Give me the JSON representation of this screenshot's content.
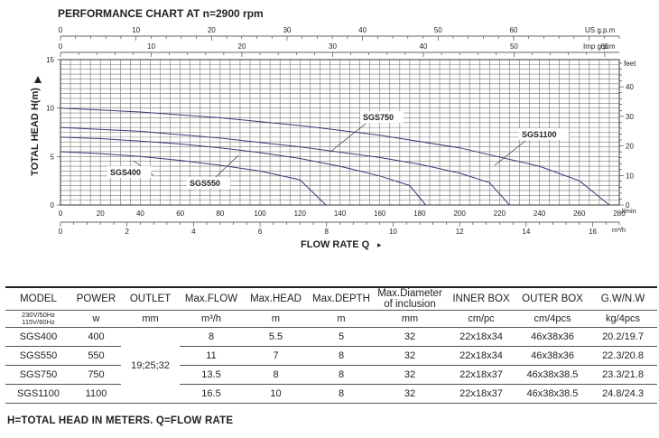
{
  "chart_data": {
    "type": "line",
    "title": "PERFORMANCE CHART AT n=2900 rpm",
    "ylabel": "TOTAL HEAD H(m)",
    "ylabel_right": "feet",
    "xlabel": "FLOW RATE Q",
    "xlabel_arrow": "▸",
    "ylim": [
      0,
      15
    ],
    "y_ticks": [
      "0",
      "5",
      "10",
      "15"
    ],
    "feet_ticks": [
      "0",
      "10",
      "20",
      "30",
      "40"
    ],
    "us_gpm_label": "US g.p.m",
    "us_gpm_ticks": [
      "0",
      "10",
      "20",
      "30",
      "40",
      "50",
      "60"
    ],
    "imp_gpm_label": "Imp  g.p.m",
    "imp_gpm_ticks": [
      "0",
      "10",
      "20",
      "30",
      "40",
      "50",
      "60"
    ],
    "lmin_label": "l/min",
    "lmin_ticks": [
      "0",
      "20",
      "40",
      "60",
      "80",
      "100",
      "120",
      "140",
      "160",
      "180",
      "200",
      "220",
      "240",
      "260",
      "280"
    ],
    "m3h_label": "m³/h",
    "m3h_ticks": [
      "0",
      "2",
      "4",
      "6",
      "8",
      "10",
      "12",
      "14",
      "16"
    ],
    "grid": true,
    "series": [
      {
        "name": "SGS400",
        "points": [
          [
            0,
            5.5
          ],
          [
            20,
            5.3
          ],
          [
            40,
            5.0
          ],
          [
            60,
            4.6
          ],
          [
            80,
            4.1
          ],
          [
            100,
            3.5
          ],
          [
            120,
            2.6
          ],
          [
            133,
            0
          ]
        ]
      },
      {
        "name": "SGS550",
        "points": [
          [
            0,
            7.0
          ],
          [
            20,
            6.85
          ],
          [
            40,
            6.6
          ],
          [
            60,
            6.3
          ],
          [
            80,
            5.9
          ],
          [
            100,
            5.4
          ],
          [
            120,
            4.8
          ],
          [
            140,
            4.0
          ],
          [
            160,
            3.0
          ],
          [
            175,
            2.0
          ],
          [
            183,
            0
          ]
        ]
      },
      {
        "name": "SGS750",
        "points": [
          [
            0,
            8.0
          ],
          [
            40,
            7.6
          ],
          [
            80,
            6.9
          ],
          [
            120,
            6.0
          ],
          [
            160,
            4.9
          ],
          [
            180,
            4.2
          ],
          [
            200,
            3.3
          ],
          [
            215,
            2.3
          ],
          [
            225,
            0
          ]
        ]
      },
      {
        "name": "SGS1100",
        "points": [
          [
            0,
            10.0
          ],
          [
            40,
            9.6
          ],
          [
            80,
            9.0
          ],
          [
            120,
            8.2
          ],
          [
            160,
            7.2
          ],
          [
            200,
            5.9
          ],
          [
            240,
            4.0
          ],
          [
            260,
            2.5
          ],
          [
            275,
            0
          ]
        ]
      }
    ]
  },
  "table": {
    "headers": [
      "MODEL",
      "POWER",
      "OUTLET",
      "Max.FLOW",
      "Max.HEAD",
      "Max.DEPTH",
      "Max.Diameter of inclusion",
      "INNER BOX",
      "OUTER BOX",
      "G.W/N.W"
    ],
    "units": [
      "230V/50Hz 115V/60Hz",
      "w",
      "mm",
      "m³/h",
      "m",
      "m",
      "mm",
      "cm/pc",
      "cm/4pcs",
      "kg/4pcs"
    ],
    "outlet_merged": "19;25;32",
    "rows": [
      [
        "SGS400",
        "400",
        "8",
        "5.5",
        "5",
        "32",
        "22x18x34",
        "46x38x36",
        "20.2/19.7"
      ],
      [
        "SGS550",
        "550",
        "11",
        "7",
        "8",
        "32",
        "22x18x34",
        "46x38x36",
        "22.3/20.8"
      ],
      [
        "SGS750",
        "750",
        "13.5",
        "8",
        "8",
        "32",
        "22x18x37",
        "46x38x38.5",
        "23.3/21.8"
      ],
      [
        "SGS1100",
        "1100",
        "16.5",
        "10",
        "8",
        "32",
        "22x18x37",
        "46x38x38.5",
        "24.8/24.3"
      ]
    ]
  },
  "footnote": "H=TOTAL HEAD IN METERS.  Q=FLOW RATE"
}
